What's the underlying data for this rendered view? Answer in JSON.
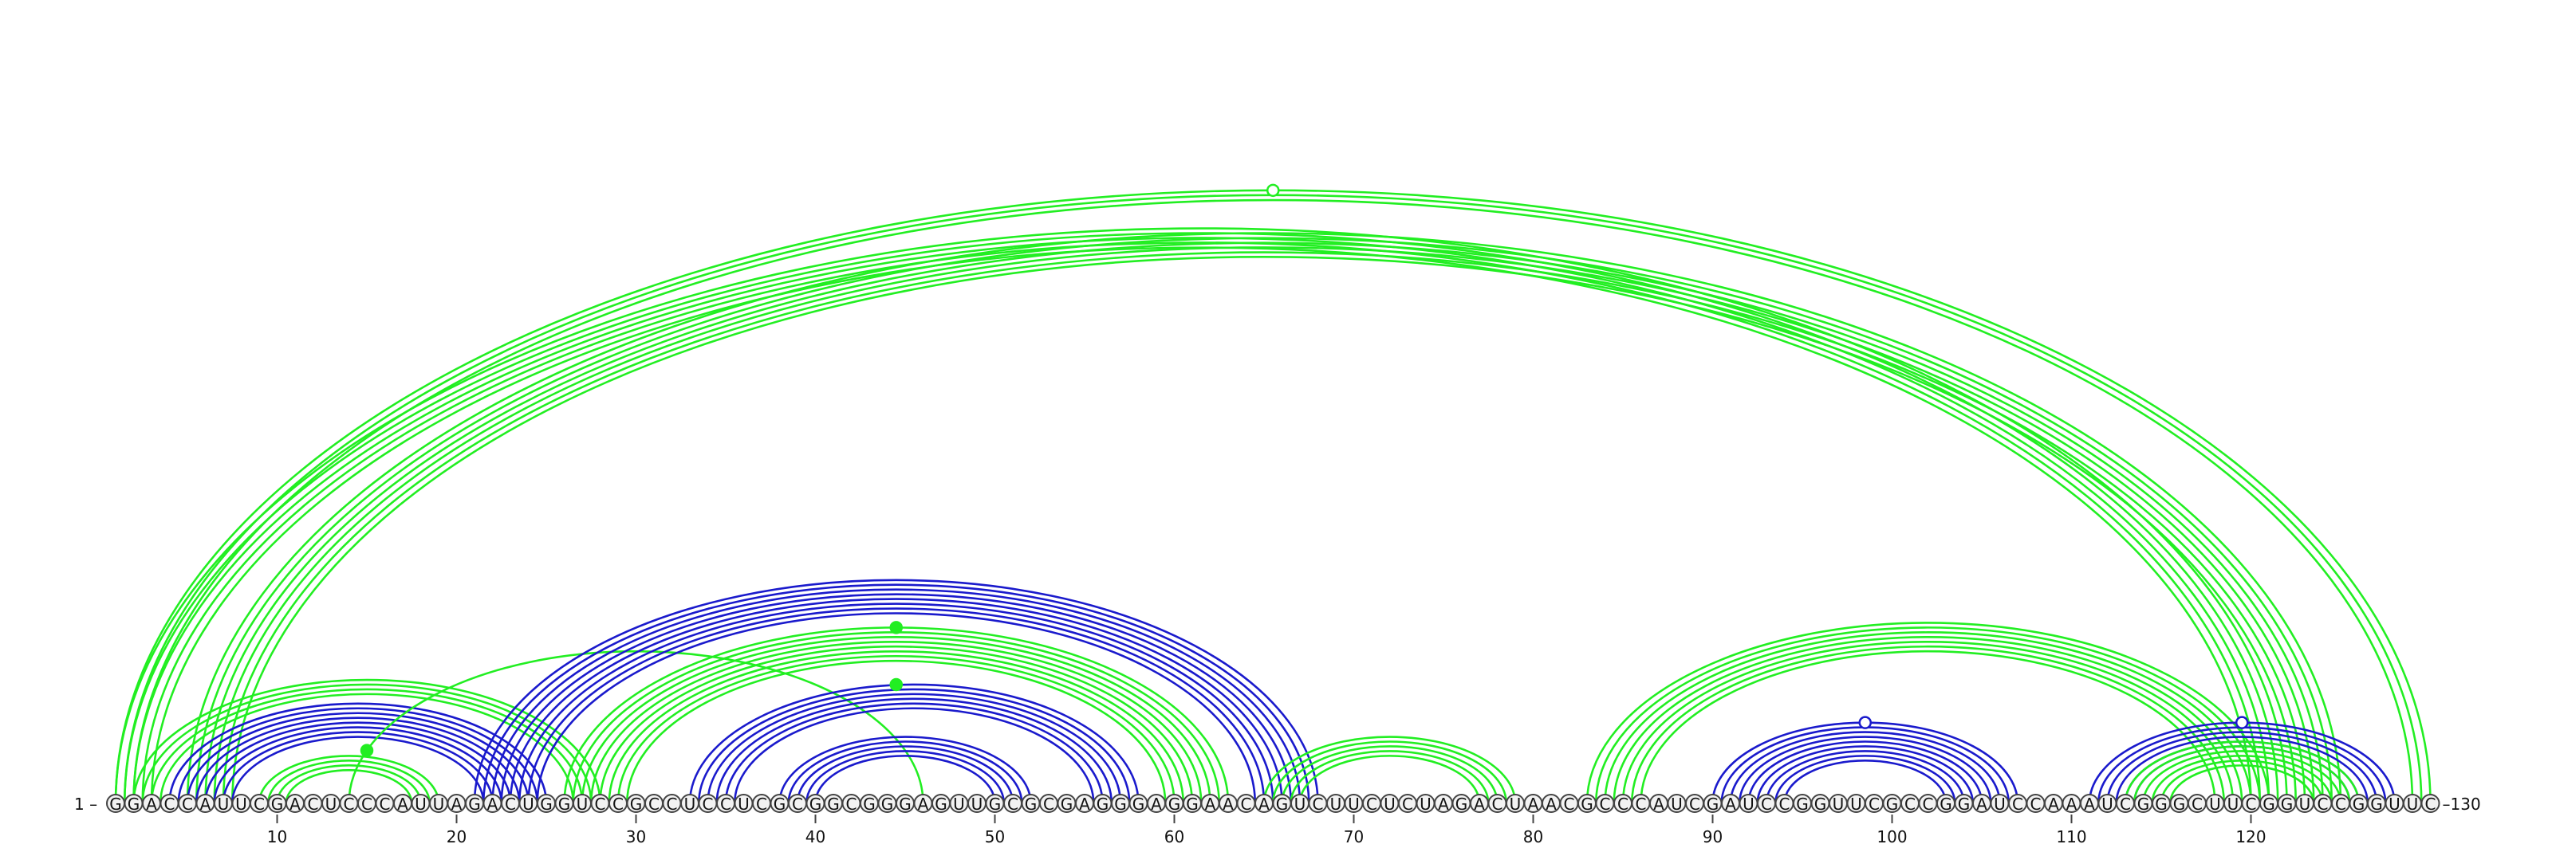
{
  "diagram": {
    "sequence": "GGACCAUUCGACUCCCAUUAGACUGGUCCGCCUCCUCGCGGCGGGAGUUGCGCGAGGGAGGAACAGUCUUCUCUAGACUAACGCCCAUCGAUCCGGUUCGCCGGAUCCAAAUCGGGCUUCGGUCCGGUUC",
    "start_label": "1 –",
    "end_label": "–130",
    "ticks": [
      10,
      20,
      30,
      40,
      50,
      60,
      70,
      80,
      90,
      100,
      110,
      120
    ],
    "colors": {
      "green": "#22ee22",
      "blue": "#1a1acc",
      "node_fill": "#f2f2f2"
    },
    "arc_groups": [
      {
        "color": "green",
        "i": 1,
        "j": 122,
        "count": 5,
        "spacing": 2
      },
      {
        "color": "green",
        "i": 1,
        "j": 130,
        "count": 3,
        "spacing": 2
      },
      {
        "color": "green",
        "i": 5,
        "j": 125,
        "count": 6,
        "spacing": 2
      },
      {
        "color": "green",
        "i": 2,
        "j": 28,
        "count": 4,
        "spacing": 2
      },
      {
        "color": "blue",
        "i": 4,
        "j": 25,
        "count": 8,
        "spacing": 2
      },
      {
        "color": "green",
        "i": 9,
        "j": 19,
        "count": 4,
        "spacing": 2
      },
      {
        "color": "green",
        "i": 14,
        "j": 46,
        "count": 1,
        "spacing": 1
      },
      {
        "color": "blue",
        "i": 21,
        "j": 68,
        "count": 8,
        "spacing": 2
      },
      {
        "color": "green",
        "i": 26,
        "j": 63,
        "count": 8,
        "spacing": 2
      },
      {
        "color": "blue",
        "i": 33,
        "j": 58,
        "count": 6,
        "spacing": 2
      },
      {
        "color": "blue",
        "i": 38,
        "j": 52,
        "count": 5,
        "spacing": 2
      },
      {
        "color": "green",
        "i": 65,
        "j": 79,
        "count": 5,
        "spacing": 2
      },
      {
        "color": "green",
        "i": 83,
        "j": 121,
        "count": 7,
        "spacing": 2
      },
      {
        "color": "blue",
        "i": 90,
        "j": 107,
        "count": 9,
        "spacing": 2
      },
      {
        "color": "blue",
        "i": 111,
        "j": 128,
        "count": 6,
        "spacing": 2
      },
      {
        "color": "green",
        "i": 113,
        "j": 126,
        "count": 6,
        "spacing": 2
      }
    ],
    "markers": [
      {
        "pos": 65.5,
        "top": 1,
        "fill": "white",
        "color": "green",
        "arc": 1
      },
      {
        "pos": 44.5,
        "top": 1,
        "fill": "green",
        "color": "green",
        "arc": 8
      },
      {
        "pos": 44.5,
        "top": 1,
        "fill": "green",
        "color": "green",
        "arc": 9
      },
      {
        "pos": 15.0,
        "top": 0,
        "fill": "green",
        "color": "green",
        "arc": 6
      },
      {
        "pos": 98.5,
        "top": 1,
        "fill": "white",
        "color": "blue",
        "arc": 13
      },
      {
        "pos": 119.5,
        "top": 1,
        "fill": "white",
        "color": "blue",
        "arc": 14
      }
    ]
  }
}
